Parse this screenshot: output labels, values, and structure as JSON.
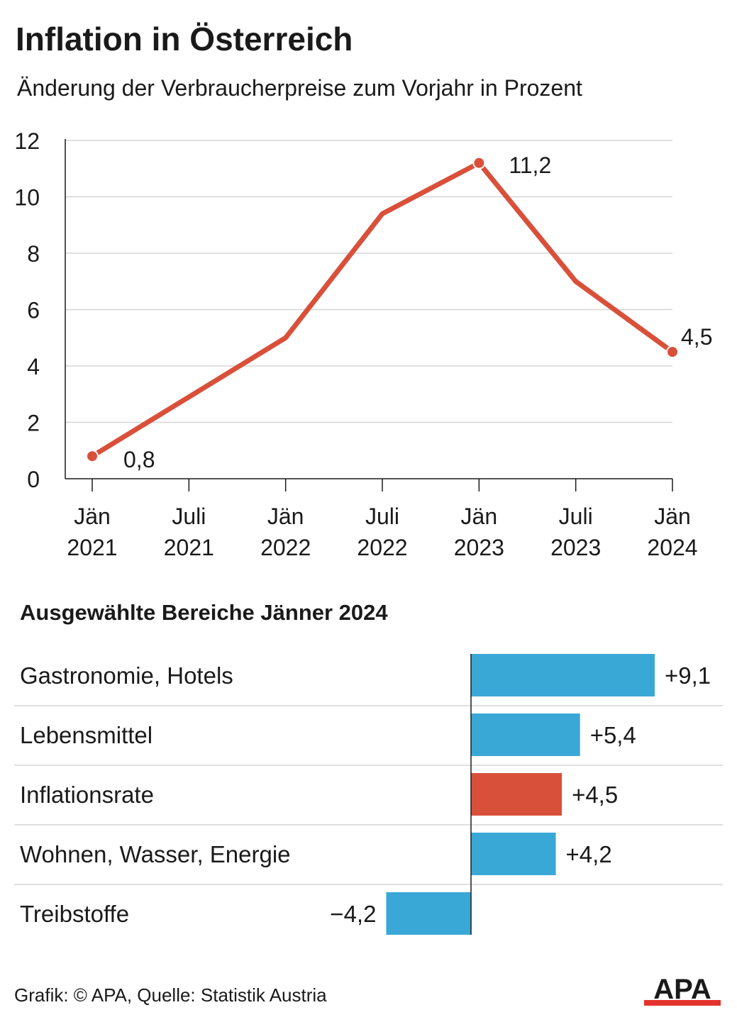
{
  "header": {
    "title": "Inflation in Österreich",
    "subtitle": "Änderung der Verbraucherpreise zum Vorjahr in Prozent"
  },
  "chart_data": [
    {
      "type": "line",
      "title": "Inflation in Österreich",
      "subtitle": "Änderung der Verbraucherpreise zum Vorjahr in Prozent",
      "ylim": [
        0,
        12
      ],
      "yticks": [
        "0",
        "2",
        "4",
        "6",
        "8",
        "10",
        "12"
      ],
      "grid": true,
      "categories": [
        {
          "month": "Jän",
          "year": "2021"
        },
        {
          "month": "Juli",
          "year": "2021"
        },
        {
          "month": "Jän",
          "year": "2022"
        },
        {
          "month": "Juli",
          "year": "2022"
        },
        {
          "month": "Jän",
          "year": "2023"
        },
        {
          "month": "Juli",
          "year": "2023"
        },
        {
          "month": "Jän",
          "year": "2024"
        }
      ],
      "series": [
        {
          "color": "#d9503a",
          "points": [
            {
              "x": 0,
              "y": 0.8,
              "label": "0,8",
              "marker": true
            },
            {
              "x": 1,
              "y": 2.9
            },
            {
              "x": 2,
              "y": 5.0
            },
            {
              "x": 3,
              "y": 9.4
            },
            {
              "x": 4,
              "y": 11.2,
              "label": "11,2",
              "marker": true
            },
            {
              "x": 5,
              "y": 7.0
            },
            {
              "x": 6,
              "y": 4.5,
              "label": "4,5",
              "marker": true
            }
          ]
        }
      ]
    },
    {
      "type": "bar",
      "orientation": "horizontal",
      "title": "Ausgewählte Bereiche Jänner 2024",
      "xlim": [
        -4.2,
        9.1
      ],
      "bars": [
        {
          "category": "Gastronomie, Hotels",
          "value": 9.1,
          "label": "+9,1",
          "color": "#3aa8d6"
        },
        {
          "category": "Lebensmittel",
          "value": 5.4,
          "label": "+5,4",
          "color": "#3aa8d6"
        },
        {
          "category": "Inflationsrate",
          "value": 4.5,
          "label": "+4,5",
          "color": "#d9503a"
        },
        {
          "category": "Wohnen, Wasser, Energie",
          "value": 4.2,
          "label": "+4,2",
          "color": "#3aa8d6"
        },
        {
          "category": "Treibstoffe",
          "value": -4.2,
          "label": "−4,2",
          "color": "#3aa8d6"
        }
      ]
    }
  ],
  "footer": {
    "source": "Grafik: © APA, Quelle: Statistik Austria",
    "logo_text": "APA"
  }
}
